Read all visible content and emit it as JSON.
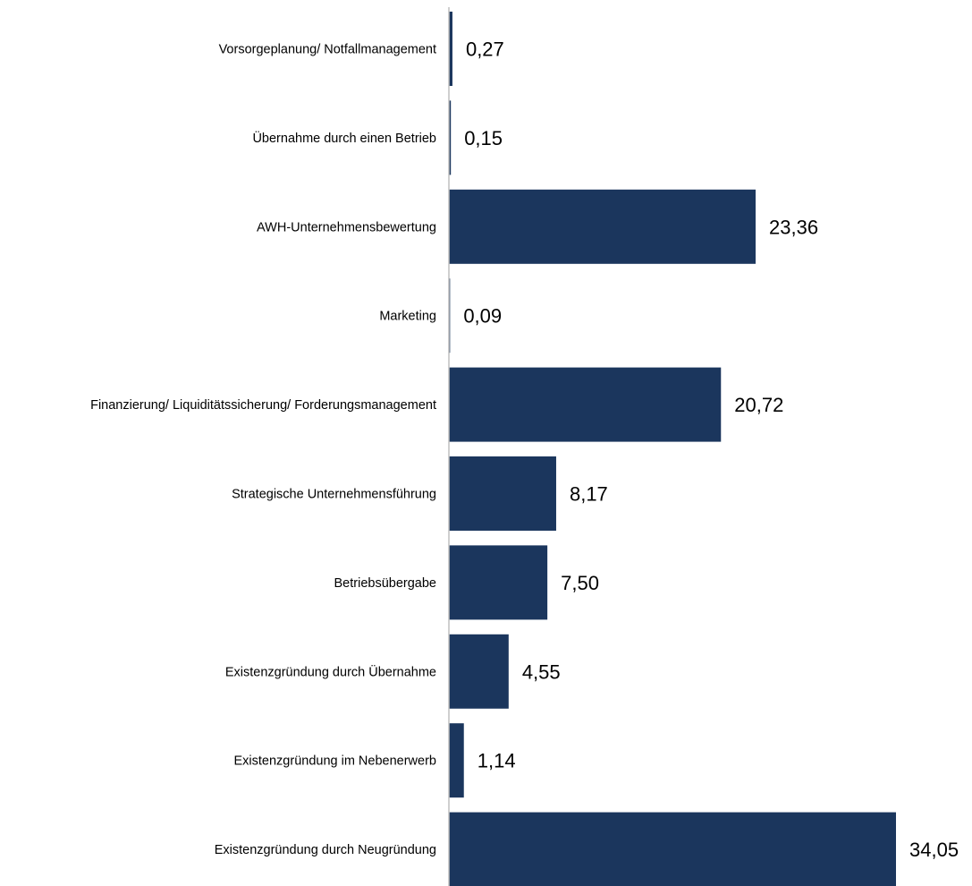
{
  "chart_data": {
    "type": "bar",
    "orientation": "horizontal",
    "title": "",
    "xlabel": "",
    "ylabel": "",
    "categories": [
      "Vorsorgeplanung/ Notfallmanagement",
      "Übernahme durch einen Betrieb",
      "AWH-Unternehmensbewertung",
      "Marketing",
      "Finanzierung/ Liquiditätssicherung/ Forderungsmanagement",
      "Strategische Unternehmensführung",
      "Betriebsübergabe",
      "Existenzgründung durch Übernahme",
      "Existenzgründung im Nebenerwerb",
      "Existenzgründung durch Neugründung"
    ],
    "values": [
      0.27,
      0.15,
      23.36,
      0.09,
      20.72,
      8.17,
      7.5,
      4.55,
      1.14,
      34.05
    ],
    "value_labels": [
      "0,27",
      "0,15",
      "23,36",
      "0,09",
      "20,72",
      "8,17",
      "7,50",
      "4,55",
      "1,14",
      "34,05"
    ],
    "xlim": [
      0,
      34.05
    ],
    "grid": false,
    "legend": "none",
    "bar_color": "#1b365d",
    "axis_color": "#bfbfbf"
  }
}
